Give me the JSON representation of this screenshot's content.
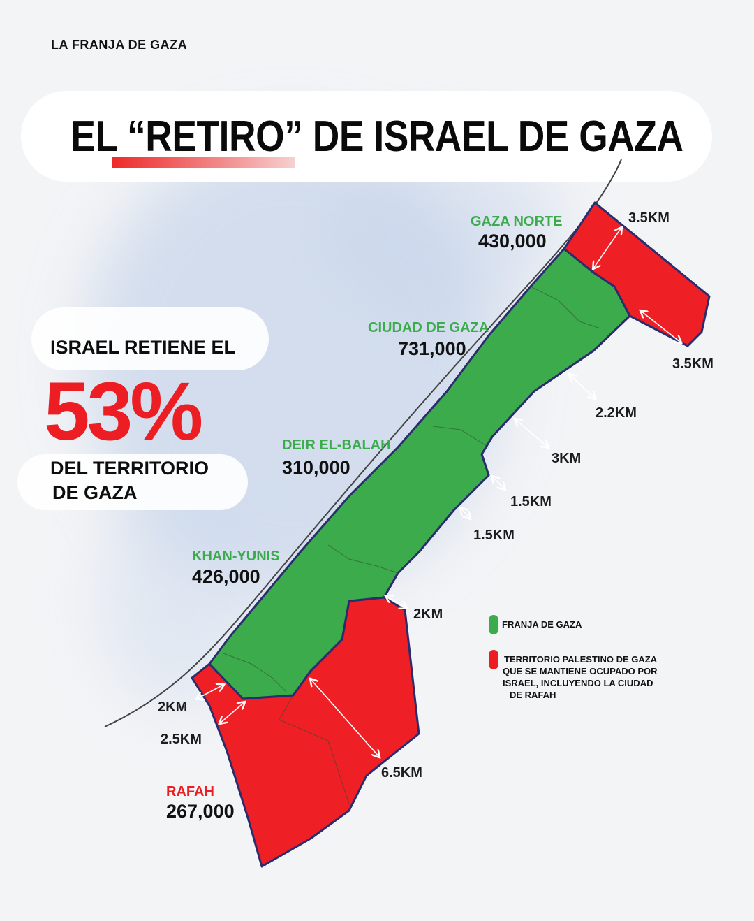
{
  "header": {
    "kicker": "LA FRANJA DE GAZA",
    "title": "EL “RETIRO” DE ISRAEL DE GAZA"
  },
  "stat": {
    "intro": "ISRAEL RETIENE EL",
    "value": "53%",
    "outro_line1": "DEL TERRITORIO",
    "outro_line2": "DE GAZA"
  },
  "regions": [
    {
      "name": "GAZA NORTE",
      "population": "430,000",
      "color": "#3bab4c"
    },
    {
      "name": "CIUDAD DE GAZA",
      "population": "731,000",
      "color": "#3bab4c"
    },
    {
      "name": "DEIR EL-BALAH",
      "population": "310,000",
      "color": "#3bab4c"
    },
    {
      "name": "KHAN-YUNIS",
      "population": "426,000",
      "color": "#3bab4c"
    },
    {
      "name": "RAFAH",
      "population": "267,000",
      "color": "#ec1e24"
    }
  ],
  "distances": [
    "3.5KM",
    "3.5KM",
    "2.2KM",
    "3KM",
    "1.5KM",
    "1.5KM",
    "2KM",
    "2KM",
    "2.5KM",
    "6.5KM"
  ],
  "legend": {
    "gaza_strip": {
      "label": "FRANJA DE GAZA",
      "color": "#3bab4c"
    },
    "occupied": {
      "lines": [
        "TERRITORIO PALESTINO DE GAZA",
        "QUE SE MANTIENE OCUPADO POR",
        "ISRAEL, INCLUYENDO LA CIUDAD",
        "DE RAFAH"
      ],
      "color": "#ec1e24"
    }
  }
}
